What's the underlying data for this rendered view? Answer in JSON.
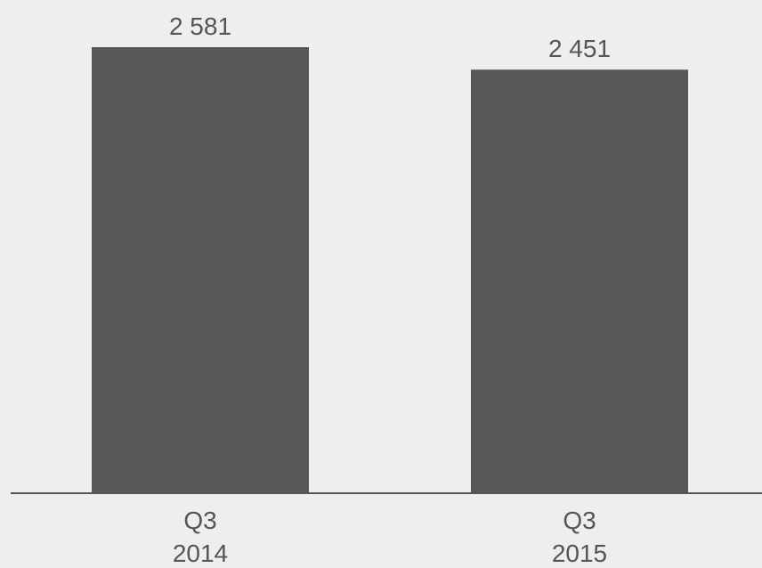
{
  "chart_data": {
    "type": "bar",
    "categories": [
      [
        "Q3",
        "2014"
      ],
      [
        "Q3",
        "2015"
      ]
    ],
    "values": [
      2581,
      2451
    ],
    "value_labels": [
      "2 581",
      "2 451"
    ],
    "ylim": [
      0,
      2581
    ],
    "grid": false,
    "title": "",
    "xlabel": "",
    "ylabel": "",
    "colors": {
      "background": "#eeeeee",
      "bar": "#575757",
      "axis": "#555555",
      "text": "#555555"
    }
  }
}
